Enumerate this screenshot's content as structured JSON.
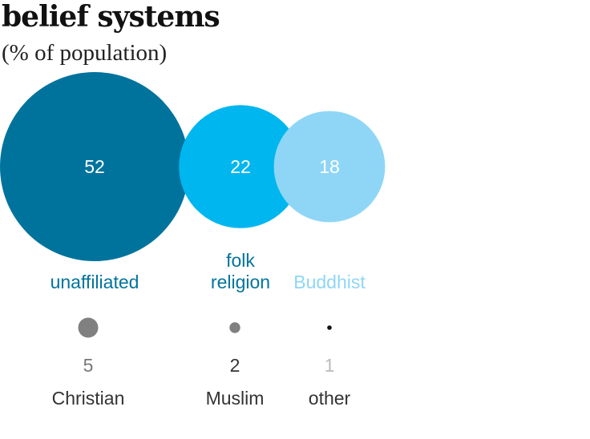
{
  "header": {
    "title": "belief systems",
    "subtitle": "(% of population)"
  },
  "chart_data": {
    "type": "bubble",
    "title": "belief systems",
    "subtitle": "(% of population)",
    "large": [
      {
        "name": "unaffiliated",
        "value": 52,
        "value_label": "52",
        "label_lines": [
          "unaffiliated"
        ],
        "color": "#00739d",
        "label_color": "#00739d"
      },
      {
        "name": "folk religion",
        "value": 22,
        "value_label": "22",
        "label_lines": [
          "folk",
          "religion"
        ],
        "color": "#00b6ef",
        "label_color": "#00739d"
      },
      {
        "name": "Buddhist",
        "value": 18,
        "value_label": "18",
        "label_lines": [
          "Buddhist"
        ],
        "color": "#8fd6f6",
        "label_color": "#8fd6f6"
      }
    ],
    "small": [
      {
        "name": "Christian",
        "value": 5,
        "value_label": "5",
        "color": "#808080",
        "value_color": "#777777"
      },
      {
        "name": "Muslim",
        "value": 2,
        "value_label": "2",
        "color": "#808080",
        "value_color": "#333333"
      },
      {
        "name": "other",
        "value": 1,
        "value_label": "1",
        "color": "#111111",
        "value_color": "#bbbbbb"
      }
    ]
  }
}
